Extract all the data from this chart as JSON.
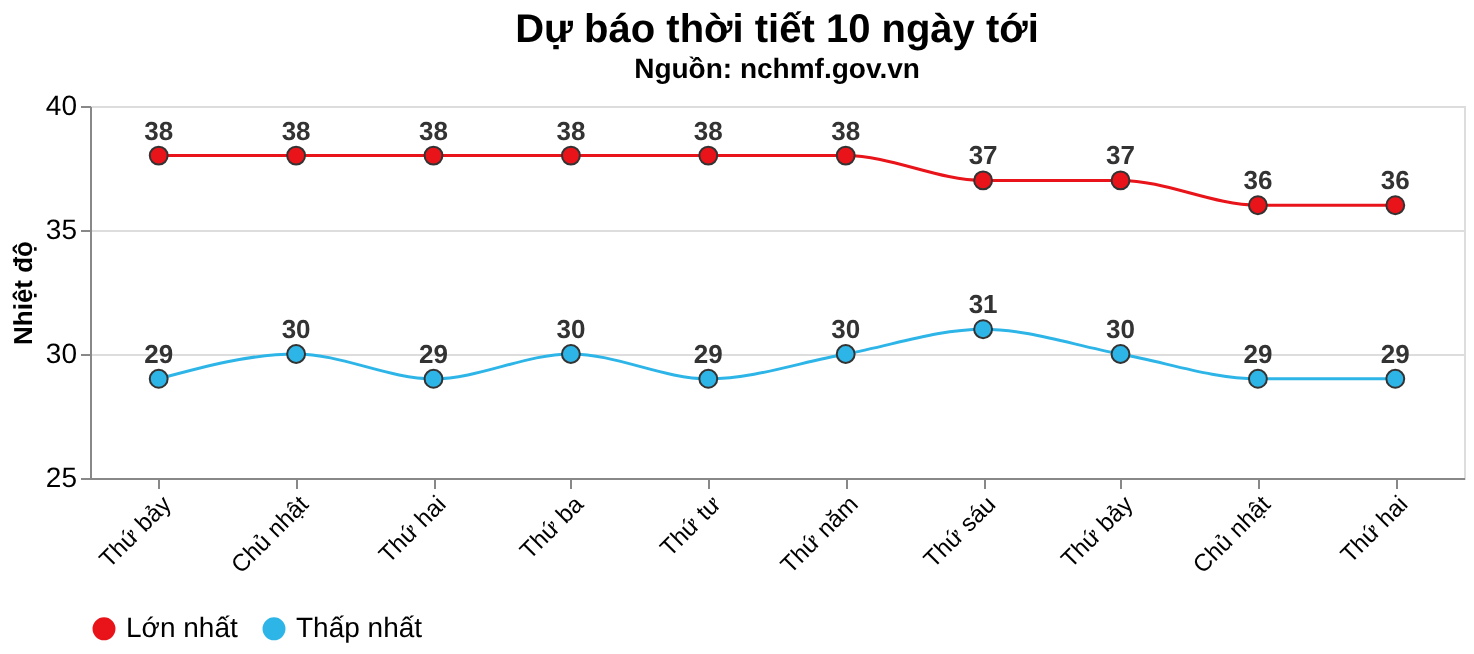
{
  "chart_data": {
    "type": "line",
    "title": "Dự báo thời tiết 10 ngày tới",
    "subtitle": "Nguồn: nchmf.gov.vn",
    "ylabel": "Nhiệt độ",
    "categories": [
      "Thứ bảy",
      "Chủ nhật",
      "Thứ hai",
      "Thứ ba",
      "Thứ tư",
      "Thứ năm",
      "Thứ sáu",
      "Thứ bảy",
      "Chủ nhật",
      "Thứ hai"
    ],
    "series": [
      {
        "name": "Lớn nhất",
        "color": "#e8141a",
        "values": [
          38,
          38,
          38,
          38,
          38,
          38,
          37,
          37,
          36,
          36
        ]
      },
      {
        "name": "Thấp nhất",
        "color": "#2eb5e8",
        "values": [
          29,
          30,
          29,
          30,
          29,
          30,
          31,
          30,
          29,
          29
        ]
      }
    ],
    "ylim": [
      25,
      40
    ],
    "yticks": [
      25,
      30,
      35,
      40
    ],
    "grid": "y",
    "legend": "bottom",
    "marker": "circle",
    "line_style": "solid",
    "data_labels": true
  }
}
